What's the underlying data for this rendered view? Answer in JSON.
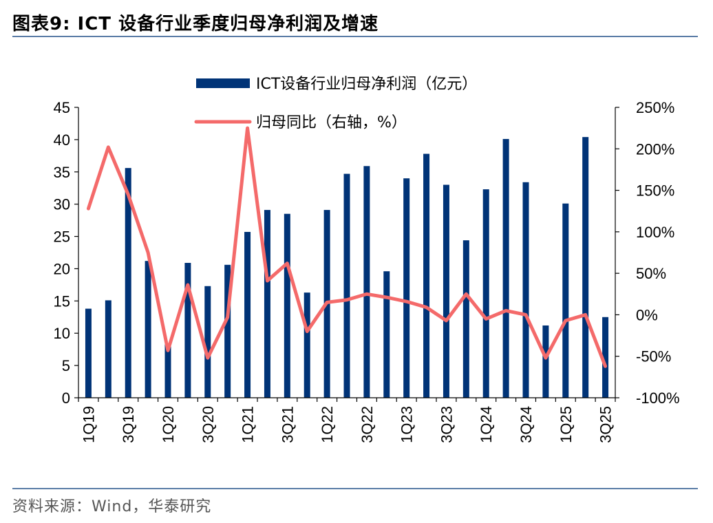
{
  "header": {
    "title": "图表9:  ICT 设备行业季度归母净利润及增速"
  },
  "footer": {
    "source": "资料来源：Wind，华泰研究"
  },
  "colors": {
    "bar": "#003377",
    "line": "#f46a6a",
    "rule": "#5a7ca6"
  },
  "chart_data": {
    "type": "bar+line",
    "title": "ICT 设备行业季度归母净利润及增速",
    "categories": [
      "1Q19",
      "2Q19",
      "3Q19",
      "4Q19",
      "1Q20",
      "2Q20",
      "3Q20",
      "4Q20",
      "1Q21",
      "2Q21",
      "3Q21",
      "4Q21",
      "1Q22",
      "2Q22",
      "3Q22",
      "4Q22",
      "1Q23",
      "2Q23",
      "3Q23",
      "4Q23",
      "1Q24",
      "2Q24",
      "3Q24",
      "4Q24",
      "1Q25",
      "2Q25",
      "3Q25"
    ],
    "x_tick_labels": [
      "1Q19",
      "",
      "3Q19",
      "",
      "1Q20",
      "",
      "3Q20",
      "",
      "1Q21",
      "",
      "3Q21",
      "",
      "1Q22",
      "",
      "3Q22",
      "",
      "1Q23",
      "",
      "3Q23",
      "",
      "1Q24",
      "",
      "3Q24",
      "",
      "1Q25",
      "",
      "3Q25"
    ],
    "series": [
      {
        "name": "ICT设备行业归母净利润（亿元）",
        "type": "bar",
        "axis": "left",
        "values": [
          13.8,
          15.1,
          35.6,
          21.2,
          8.3,
          20.9,
          17.3,
          20.6,
          25.7,
          29.1,
          28.5,
          16.3,
          29.1,
          34.7,
          35.9,
          19.6,
          34.0,
          37.8,
          33.0,
          24.4,
          32.3,
          40.1,
          33.4,
          11.2,
          30.1,
          40.4,
          12.5
        ]
      },
      {
        "name": "归母同比（右轴，%）",
        "type": "line",
        "axis": "right",
        "values": [
          128,
          202,
          145,
          75,
          -43,
          36,
          -52,
          -3,
          225,
          41,
          62,
          -20,
          15,
          18,
          25,
          21,
          16,
          9,
          -7,
          25,
          -5,
          5,
          0,
          -52,
          -7,
          0,
          -62
        ]
      }
    ],
    "left_axis": {
      "min": 0,
      "max": 45,
      "step": 5,
      "tick_labels": [
        "0",
        "5",
        "10",
        "15",
        "20",
        "25",
        "30",
        "35",
        "40",
        "45"
      ]
    },
    "right_axis": {
      "min": -100,
      "max": 250,
      "step": 50,
      "tick_labels": [
        "-100%",
        "-50%",
        "0%",
        "50%",
        "100%",
        "150%",
        "200%",
        "250%"
      ]
    },
    "legend": [
      "ICT设备行业归母净利润（亿元）",
      "归母同比（右轴，%）"
    ]
  }
}
